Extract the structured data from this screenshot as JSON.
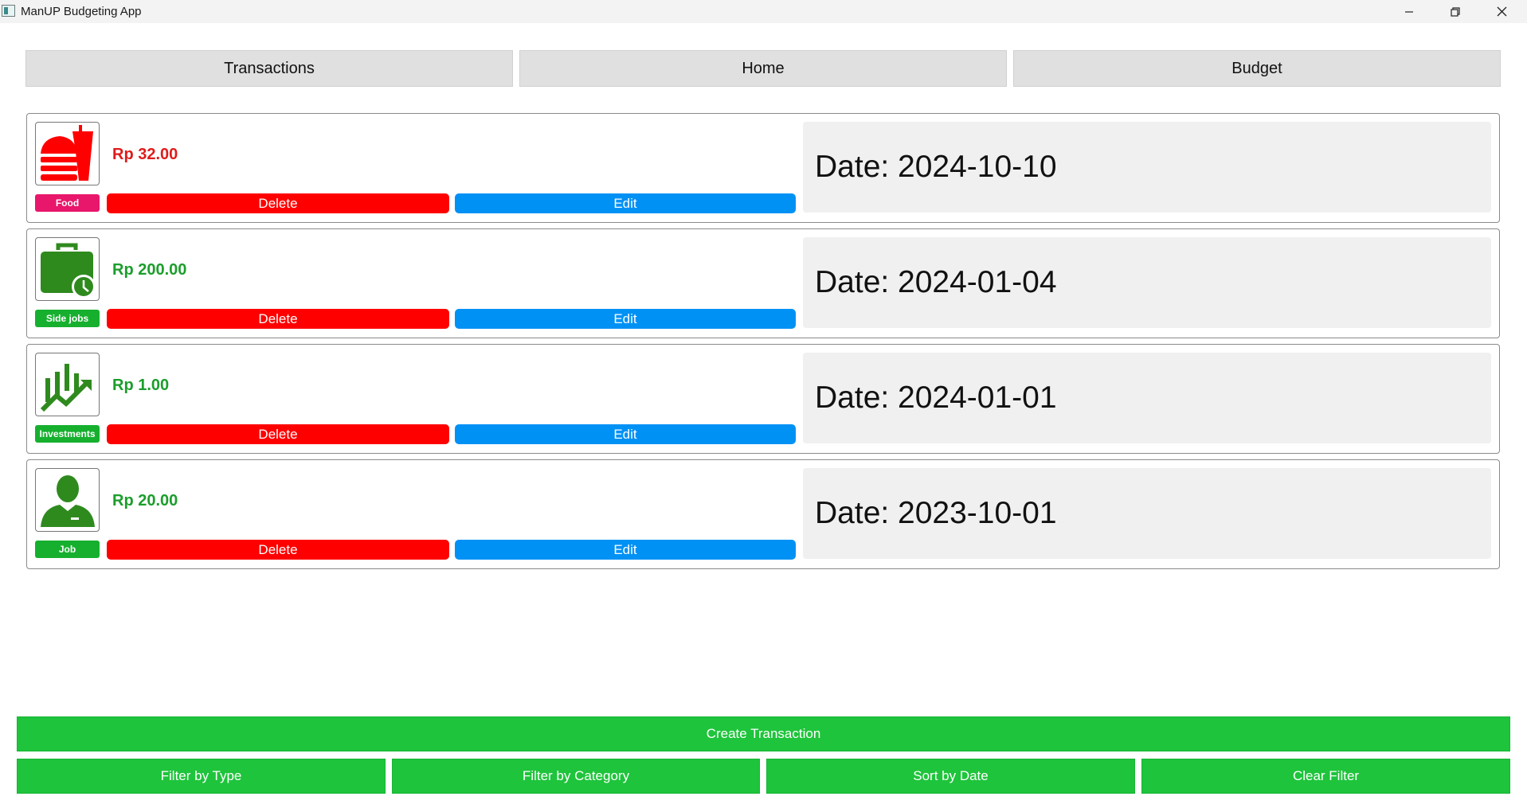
{
  "window": {
    "title": "ManUP Budgeting App"
  },
  "tabs": [
    {
      "label": "Transactions"
    },
    {
      "label": "Home"
    },
    {
      "label": "Budget"
    }
  ],
  "transactions": [
    {
      "amount": "Rp 32.00",
      "category": "Food",
      "date": "Date: 2024-10-10",
      "delete_label": "Delete",
      "edit_label": "Edit",
      "icon": "food-icon",
      "amount_color": "#e01b1b",
      "category_color": "#e8176b"
    },
    {
      "amount": "Rp 200.00",
      "category": "Side jobs",
      "date": "Date: 2024-01-04",
      "delete_label": "Delete",
      "edit_label": "Edit",
      "icon": "briefcase-clock-icon",
      "amount_color": "#1b9e2b",
      "category_color": "#16b02e"
    },
    {
      "amount": "Rp 1.00",
      "category": "Investments",
      "date": "Date: 2024-01-01",
      "delete_label": "Delete",
      "edit_label": "Edit",
      "icon": "investment-chart-icon",
      "amount_color": "#1b9e2b",
      "category_color": "#16b02e"
    },
    {
      "amount": "Rp 20.00",
      "category": "Job",
      "date": "Date: 2023-10-01",
      "delete_label": "Delete",
      "edit_label": "Edit",
      "icon": "person-icon",
      "amount_color": "#1b9e2b",
      "category_color": "#16b02e"
    }
  ],
  "actions": {
    "create_label": "Create Transaction",
    "filter_type_label": "Filter by Type",
    "filter_category_label": "Filter by Category",
    "sort_date_label": "Sort by Date",
    "clear_filter_label": "Clear Filter"
  },
  "colors": {
    "delete": "#ff0000",
    "edit": "#0091f5",
    "action_green": "#1ec43b"
  }
}
